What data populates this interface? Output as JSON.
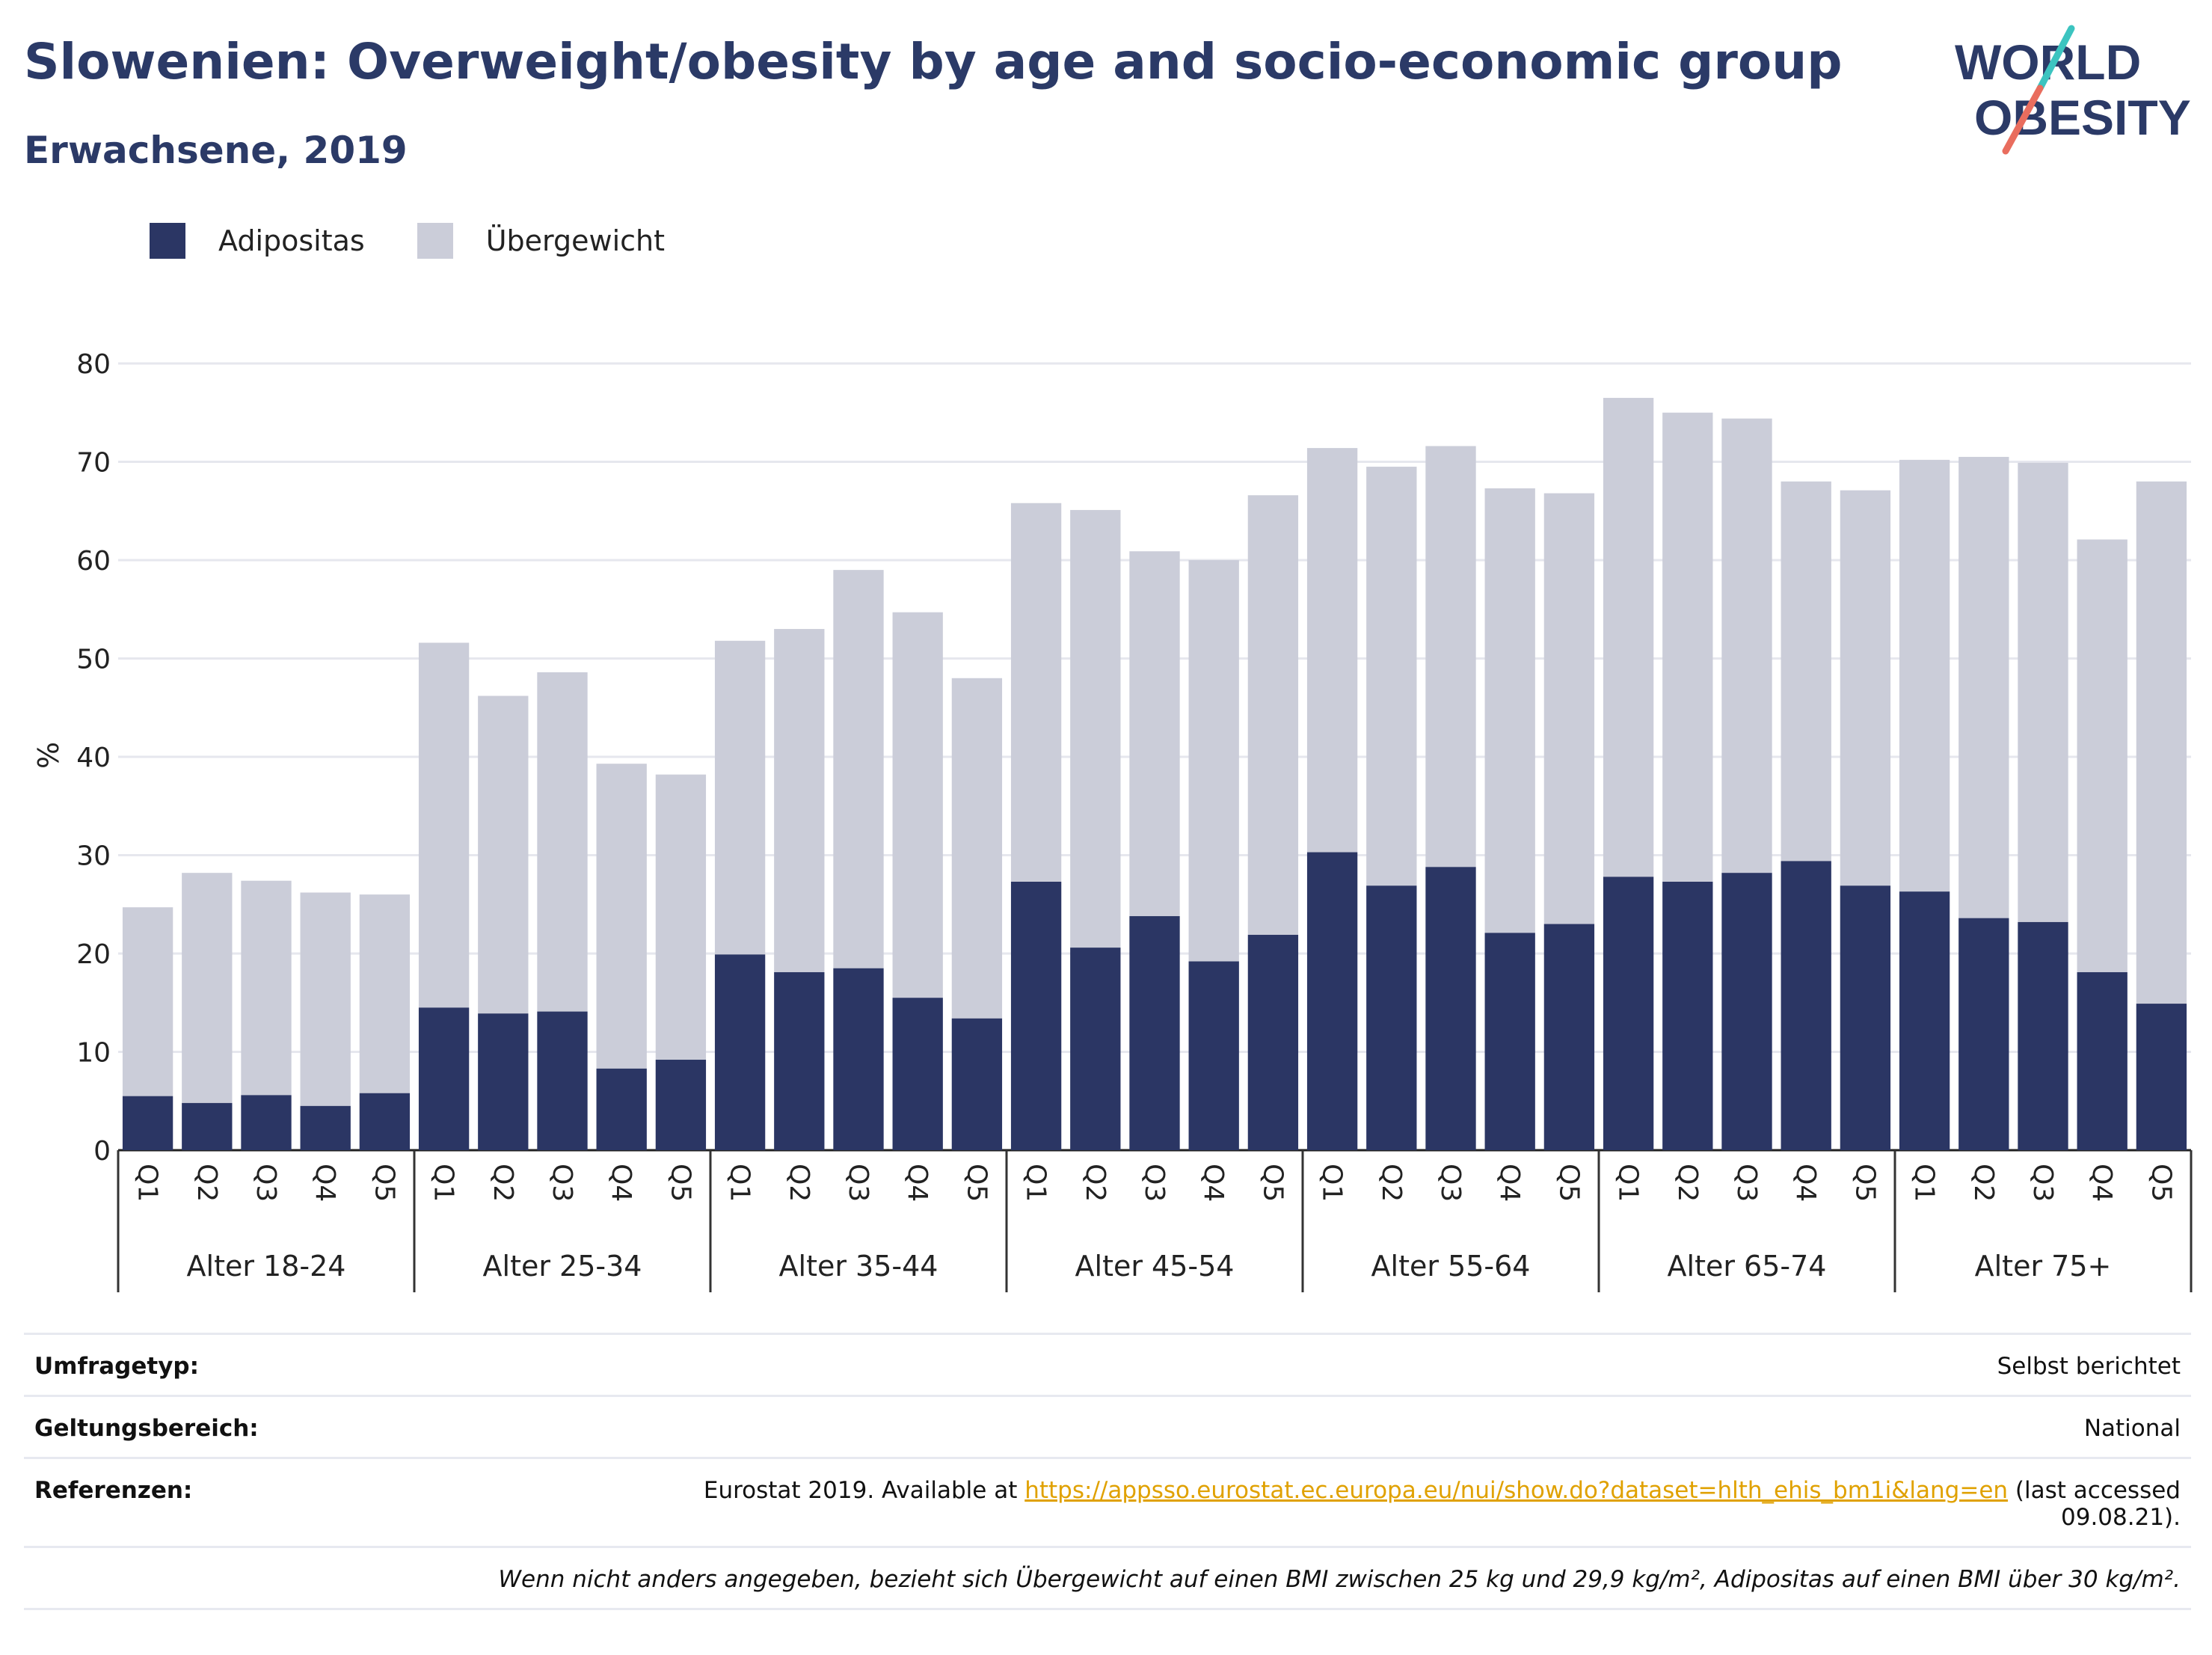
{
  "header": {
    "title": "Slowenien: Overweight/obesity by age and socio-economic group",
    "subtitle": "Erwachsene, 2019",
    "logo_line1": "WORLD",
    "logo_line2": "OBESITY"
  },
  "legend": [
    {
      "label": "Adipositas",
      "color": "#2b3664"
    },
    {
      "label": "Übergewicht",
      "color": "#cbcdd9"
    }
  ],
  "chart_data": {
    "type": "bar",
    "stacked": true,
    "ylabel": "%",
    "ylim": [
      0,
      80
    ],
    "yticks": [
      0,
      10,
      20,
      30,
      40,
      50,
      60,
      70,
      80
    ],
    "grid": true,
    "legend_position": "top-left",
    "groups": [
      "Alter 18-24",
      "Alter 25-34",
      "Alter 35-44",
      "Alter 45-54",
      "Alter 55-64",
      "Alter 65-74",
      "Alter 75+"
    ],
    "subcategories": [
      "Q1",
      "Q2",
      "Q3",
      "Q4",
      "Q5"
    ],
    "series": [
      {
        "name": "Adipositas",
        "color": "#2b3664",
        "values": [
          5.5,
          4.8,
          5.6,
          4.5,
          5.8,
          14.5,
          13.9,
          14.1,
          8.3,
          9.2,
          19.9,
          18.1,
          18.5,
          15.5,
          13.4,
          27.3,
          20.6,
          23.8,
          19.2,
          21.9,
          30.3,
          26.9,
          28.8,
          22.1,
          23.0,
          27.8,
          27.3,
          28.2,
          29.4,
          26.9,
          26.3,
          23.6,
          23.2,
          18.1,
          14.9
        ]
      },
      {
        "name": "Übergewicht",
        "color": "#cbcdd9",
        "values": [
          19.2,
          23.4,
          21.8,
          21.7,
          20.2,
          37.1,
          32.3,
          34.5,
          31.0,
          29.0,
          31.9,
          34.9,
          40.5,
          39.2,
          34.6,
          38.5,
          44.5,
          37.1,
          40.8,
          44.7,
          41.1,
          42.6,
          42.8,
          45.2,
          43.8,
          48.7,
          47.7,
          46.2,
          38.6,
          40.2,
          43.9,
          46.9,
          46.7,
          44.0,
          53.1
        ]
      }
    ]
  },
  "meta": {
    "survey_label": "Umfragetyp:",
    "survey_value": "Selbst berichtet",
    "scope_label": "Geltungsbereich:",
    "scope_value": "National",
    "ref_label": "Referenzen:",
    "ref_prefix": "Eurostat 2019. Available at ",
    "ref_link": "https://appsso.eurostat.ec.europa.eu/nui/show.do?dataset=hlth_ehis_bm1i&lang=en",
    "ref_suffix": " (last accessed 09.08.21).",
    "footnote": "Wenn nicht anders angegeben, bezieht sich Übergewicht auf einen BMI zwischen 25 kg und 29,9 kg/m², Adipositas auf einen BMI über 30 kg/m²."
  }
}
